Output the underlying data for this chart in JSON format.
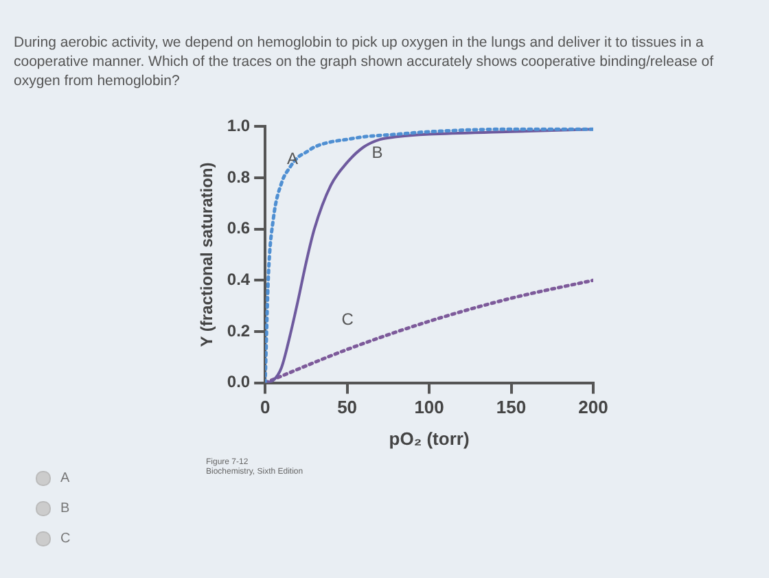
{
  "chart_data": {
    "type": "line",
    "title": "During aerobic activity, we depend on hemoglobin to pick up oxygen in the lungs and deliver it to tissues in a cooperative manner. Which of the traces on the graph shown accurately shows cooperative binding/release of oxygen from hemoglobin?",
    "xlabel": "pO₂ (torr)",
    "ylabel": "Y (fractional saturation)",
    "series": [
      {
        "name": "A",
        "color": "#4f8fd2",
        "line_style": "dotted",
        "x": [
          0,
          2,
          5,
          10,
          15,
          20,
          25,
          30,
          40,
          50,
          60,
          80,
          100,
          150,
          200
        ],
        "values": [
          0,
          0.42,
          0.64,
          0.78,
          0.84,
          0.88,
          0.9,
          0.92,
          0.94,
          0.95,
          0.96,
          0.97,
          0.98,
          0.99,
          0.99
        ]
      },
      {
        "name": "B",
        "color": "#6e5a9e",
        "line_style": "solid",
        "x": [
          0,
          5,
          10,
          15,
          20,
          25,
          30,
          40,
          50,
          60,
          70,
          80,
          100,
          150,
          200
        ],
        "values": [
          0,
          0.01,
          0.06,
          0.18,
          0.32,
          0.47,
          0.6,
          0.77,
          0.86,
          0.92,
          0.95,
          0.96,
          0.97,
          0.98,
          0.99
        ]
      },
      {
        "name": "C",
        "color": "#7d5a9a",
        "line_style": "dotted",
        "x": [
          0,
          50,
          100,
          150,
          200
        ],
        "values": [
          0,
          0.13,
          0.24,
          0.33,
          0.4
        ]
      }
    ],
    "xlim": [
      0,
      200
    ],
    "xticks": [
      0,
      50,
      100,
      150,
      200
    ],
    "ylim": [
      0,
      1
    ],
    "yticks": [
      {
        "value": 0,
        "label": "0.0"
      },
      {
        "value": 0.2,
        "label": "0.2"
      },
      {
        "value": 0.4,
        "label": "0.4"
      },
      {
        "value": 0.6,
        "label": "0.6"
      },
      {
        "value": 0.8,
        "label": "0.8"
      },
      {
        "value": 1,
        "label": "1.0"
      }
    ],
    "grid": false,
    "legend": false,
    "marker": "none",
    "annotations": [
      "Figure 7-12",
      "Biochemistry, Sixth Edition",
      "A",
      "B",
      "C"
    ]
  }
}
